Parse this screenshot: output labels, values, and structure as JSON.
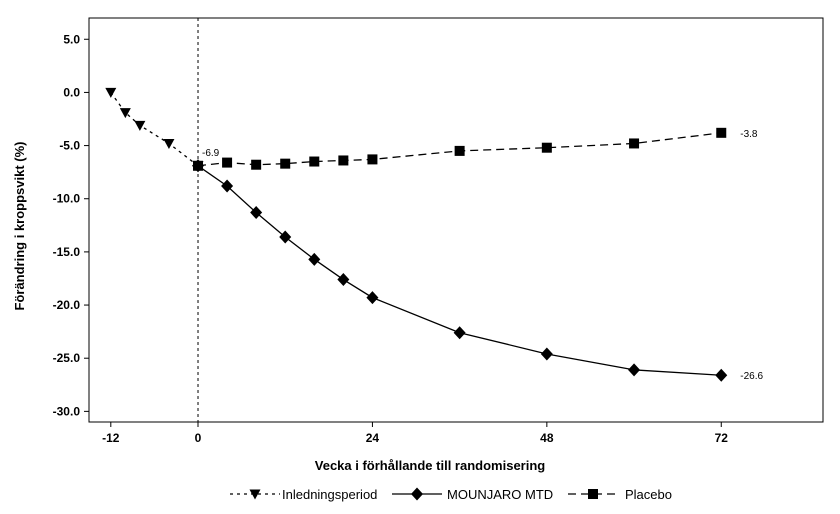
{
  "chart_data": {
    "type": "line",
    "xlabel": "Vecka i förhållande till randomisering",
    "ylabel": "Förändring i kroppsvikt (%)",
    "xlim": [
      -15,
      86
    ],
    "ylim": [
      -31,
      7
    ],
    "x_ticks": [
      -12,
      0,
      24,
      48,
      72
    ],
    "x_tick_labels": [
      "-12",
      "0",
      "24",
      "48",
      "72"
    ],
    "y_ticks": [
      5,
      0,
      -5,
      -10,
      -15,
      -20,
      -25,
      -30
    ],
    "y_tick_labels": [
      "5.0",
      "0.0",
      "-5.0",
      "-10.0",
      "-15.0",
      "-20.0",
      "-25.0",
      "-30.0"
    ],
    "reference_line_x": 0,
    "series": [
      {
        "name": "Inledningsperiod",
        "marker": "triangle-down",
        "line_style": "dash-dot",
        "color": "#000000",
        "x": [
          -12,
          -10,
          -8,
          -4,
          0
        ],
        "y": [
          0.0,
          -1.9,
          -3.1,
          -4.8,
          -6.9
        ]
      },
      {
        "name": "MOUNJARO MTD",
        "marker": "diamond",
        "line_style": "solid",
        "color": "#000000",
        "x": [
          0,
          4,
          8,
          12,
          16,
          20,
          24,
          36,
          48,
          60,
          72
        ],
        "y": [
          -6.9,
          -8.8,
          -11.3,
          -13.6,
          -15.7,
          -17.6,
          -19.3,
          -22.6,
          -24.6,
          -26.1,
          -26.6
        ]
      },
      {
        "name": "Placebo",
        "marker": "square",
        "line_style": "dashed",
        "color": "#000000",
        "x": [
          0,
          4,
          8,
          12,
          16,
          20,
          24,
          36,
          48,
          60,
          72
        ],
        "y": [
          -6.9,
          -6.6,
          -6.8,
          -6.7,
          -6.5,
          -6.4,
          -6.3,
          -5.5,
          -5.2,
          -4.8,
          -3.8
        ]
      }
    ],
    "annotations": [
      {
        "text": "-6.9",
        "x": 0,
        "y": -6.9
      },
      {
        "text": "-3.8",
        "x": 72,
        "y": -3.8
      },
      {
        "text": "-26.6",
        "x": 72,
        "y": -26.6
      }
    ],
    "grid": false,
    "legend_position": "bottom"
  }
}
